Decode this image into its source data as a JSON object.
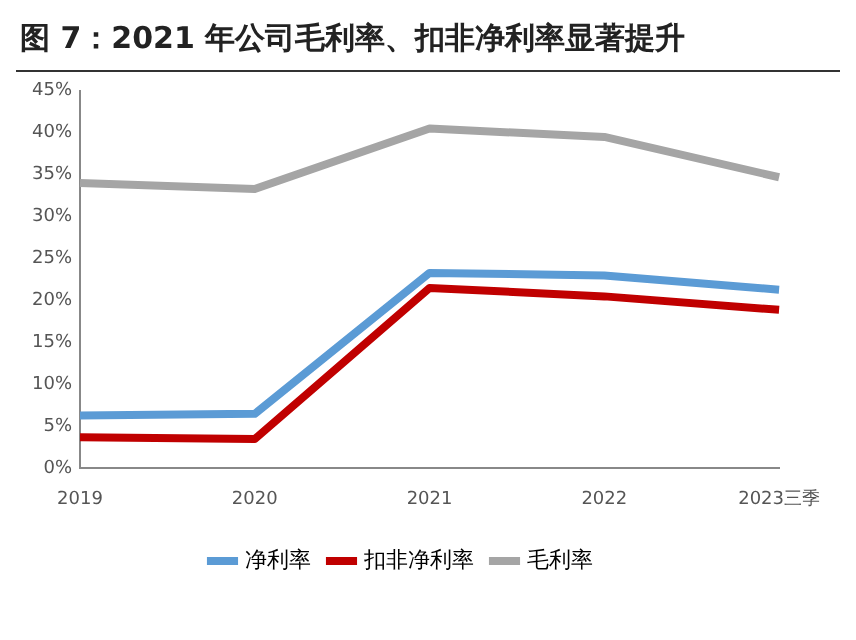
{
  "chart_data": {
    "type": "line",
    "title": "图 7：2021 年公司毛利率、扣非净利率显著提升",
    "categories": [
      "2019",
      "2020",
      "2021",
      "2022",
      "2023三季"
    ],
    "series": [
      {
        "name": "净利率",
        "color": "#5b9bd5",
        "values": [
          6.3,
          6.5,
          23.3,
          23.0,
          21.3
        ]
      },
      {
        "name": "扣非净利率",
        "color": "#c00000",
        "values": [
          3.7,
          3.5,
          21.5,
          20.5,
          18.9
        ]
      },
      {
        "name": "毛利率",
        "color": "#a5a5a5",
        "values": [
          34.0,
          33.3,
          40.5,
          39.5,
          34.7
        ]
      }
    ],
    "ylim": [
      0,
      45
    ],
    "yticks": [
      {
        "value": 0,
        "label": "0%"
      },
      {
        "value": 5,
        "label": "5%"
      },
      {
        "value": 10,
        "label": "10%"
      },
      {
        "value": 15,
        "label": "15%"
      },
      {
        "value": 20,
        "label": "20%"
      },
      {
        "value": 25,
        "label": "25%"
      },
      {
        "value": 30,
        "label": "30%"
      },
      {
        "value": 35,
        "label": "35%"
      },
      {
        "value": 40,
        "label": "40%"
      },
      {
        "value": 45,
        "label": "45%"
      }
    ],
    "grid": false,
    "legend": "bottom",
    "marker": "none",
    "line_style": "solid"
  }
}
